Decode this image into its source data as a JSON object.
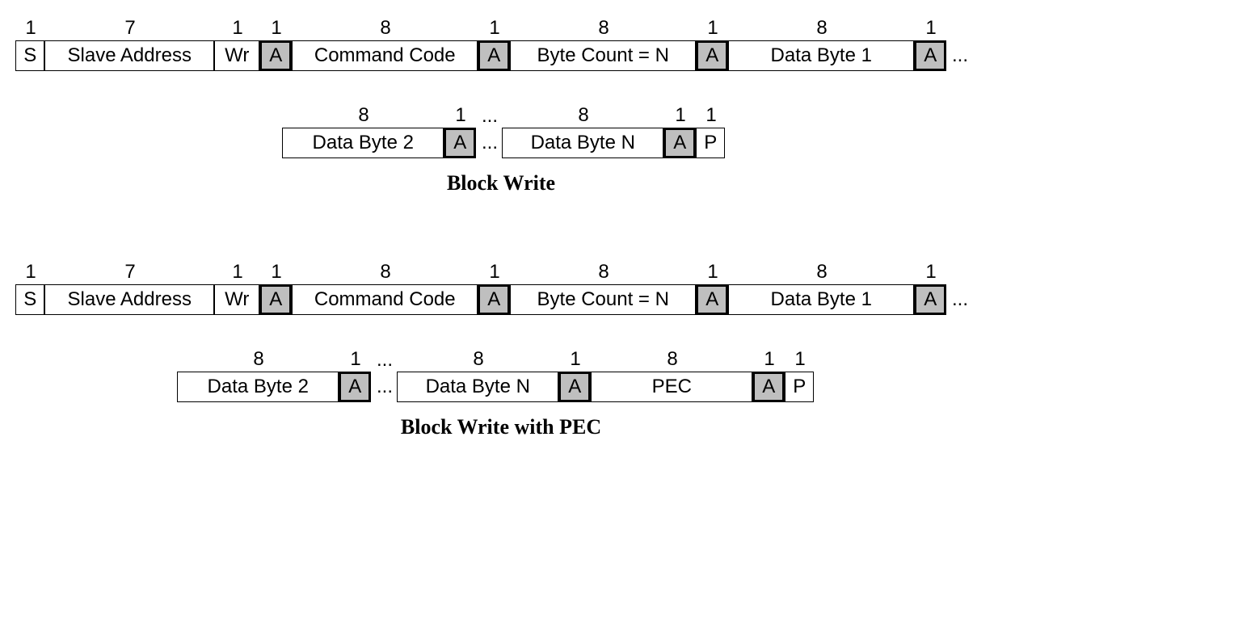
{
  "colors": {
    "ack_bg": "#bfbfbf",
    "border": "#000000",
    "background": "#ffffff"
  },
  "font": {
    "bit_label_size": 24,
    "cell_size": 24,
    "caption_size": 26
  },
  "widths": {
    "w1": 36,
    "w7": 210,
    "wr": 56,
    "ack": 40,
    "w8": 230,
    "w8a": 230,
    "w8b": 230,
    "p": 36,
    "w8data2": 200,
    "w8datan": 200,
    "pec": 200
  },
  "blockWrite": {
    "title": "Block Write",
    "row1": [
      {
        "bits": "1",
        "label": "S",
        "w": "w1",
        "ack": false
      },
      {
        "bits": "7",
        "label": "Slave Address",
        "w": "w7",
        "ack": false
      },
      {
        "bits": "1",
        "label": "Wr",
        "w": "wr",
        "ack": false
      },
      {
        "bits": "1",
        "label": "A",
        "w": "ack",
        "ack": true
      },
      {
        "bits": "8",
        "label": "Command Code",
        "w": "w8",
        "ack": false
      },
      {
        "bits": "1",
        "label": "A",
        "w": "ack",
        "ack": true
      },
      {
        "bits": "8",
        "label": "Byte Count = N",
        "w": "w8a",
        "ack": false
      },
      {
        "bits": "1",
        "label": "A",
        "w": "ack",
        "ack": true
      },
      {
        "bits": "8",
        "label": "Data Byte 1",
        "w": "w8b",
        "ack": false
      },
      {
        "bits": "1",
        "label": "A",
        "w": "ack",
        "ack": true
      }
    ],
    "row1_trailing_dots": "...",
    "row2_indent": 330,
    "row2a": [
      {
        "bits": "8",
        "label": "Data Byte 2",
        "w": "w8data2",
        "ack": false
      },
      {
        "bits": "1",
        "label": "A",
        "w": "ack",
        "ack": true
      }
    ],
    "row2_mid_dots": "...",
    "row2b": [
      {
        "bits": "8",
        "label": "Data Byte N",
        "w": "w8datan",
        "ack": false
      },
      {
        "bits": "1",
        "label": "A",
        "w": "ack",
        "ack": true
      },
      {
        "bits": "1",
        "label": "P",
        "w": "p",
        "ack": false
      }
    ]
  },
  "blockWritePEC": {
    "title": "Block Write with PEC",
    "row1": [
      {
        "bits": "1",
        "label": "S",
        "w": "w1",
        "ack": false
      },
      {
        "bits": "7",
        "label": "Slave Address",
        "w": "w7",
        "ack": false
      },
      {
        "bits": "1",
        "label": "Wr",
        "w": "wr",
        "ack": false
      },
      {
        "bits": "1",
        "label": "A",
        "w": "ack",
        "ack": true
      },
      {
        "bits": "8",
        "label": "Command Code",
        "w": "w8",
        "ack": false
      },
      {
        "bits": "1",
        "label": "A",
        "w": "ack",
        "ack": true
      },
      {
        "bits": "8",
        "label": "Byte Count = N",
        "w": "w8a",
        "ack": false
      },
      {
        "bits": "1",
        "label": "A",
        "w": "ack",
        "ack": true
      },
      {
        "bits": "8",
        "label": "Data Byte 1",
        "w": "w8b",
        "ack": false
      },
      {
        "bits": "1",
        "label": "A",
        "w": "ack",
        "ack": true
      }
    ],
    "row1_trailing_dots": "...",
    "row2_indent": 200,
    "row2a": [
      {
        "bits": "8",
        "label": "Data Byte 2",
        "w": "w8data2",
        "ack": false
      },
      {
        "bits": "1",
        "label": "A",
        "w": "ack",
        "ack": true
      }
    ],
    "row2_mid_dots": "...",
    "row2b": [
      {
        "bits": "8",
        "label": "Data Byte N",
        "w": "w8datan",
        "ack": false
      },
      {
        "bits": "1",
        "label": "A",
        "w": "ack",
        "ack": true
      },
      {
        "bits": "8",
        "label": "PEC",
        "w": "pec",
        "ack": false
      },
      {
        "bits": "1",
        "label": "A",
        "w": "ack",
        "ack": true
      },
      {
        "bits": "1",
        "label": "P",
        "w": "p",
        "ack": false
      }
    ]
  }
}
